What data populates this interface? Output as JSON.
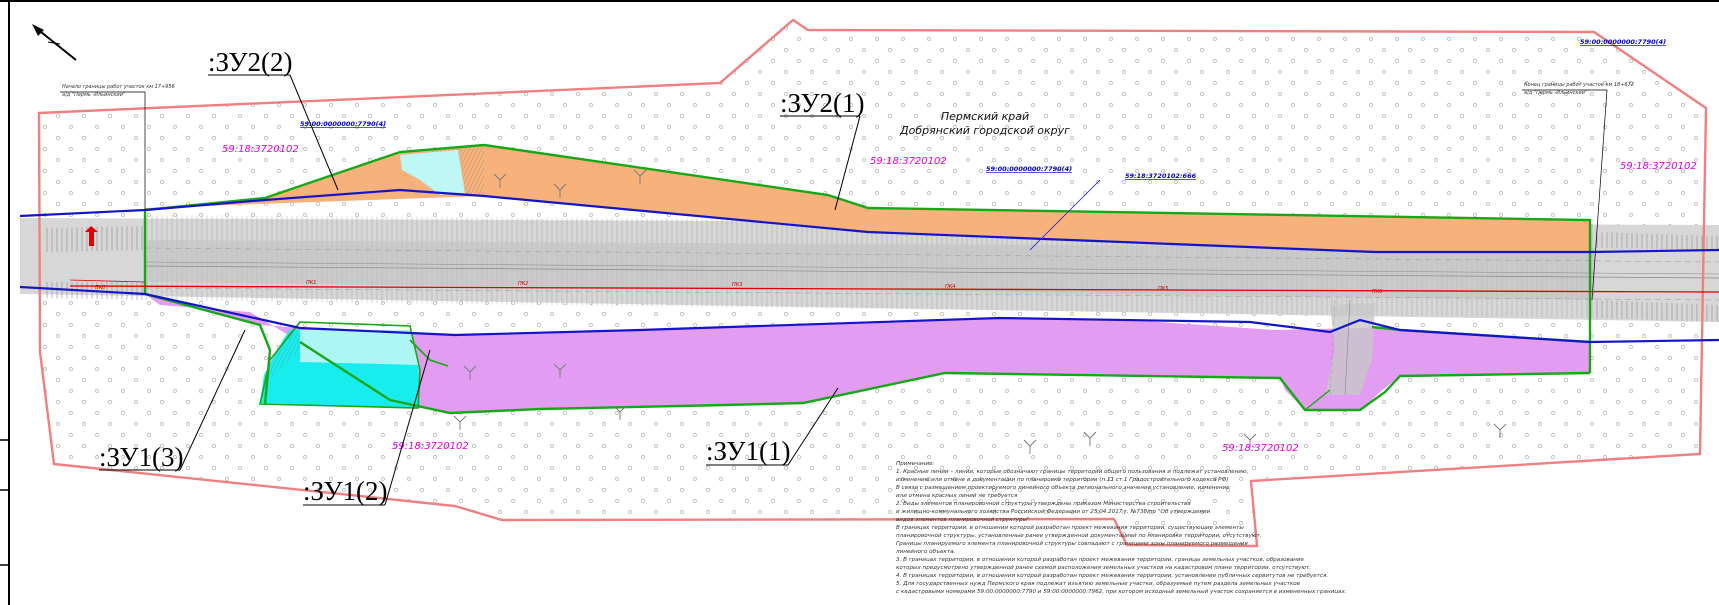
{
  "parcels": {
    "zu2_2": ":ЗУ2(2)",
    "zu2_1": ":ЗУ2(1)",
    "zu1_3": ":ЗУ1(3)",
    "zu1_2": ":ЗУ1(2)",
    "zu1_1": ":ЗУ1(1)"
  },
  "region": {
    "line1": "Пермский край",
    "line2": "Добрянский городской округ"
  },
  "cadastral": {
    "quarter_top_left": "59:18:3720102",
    "quarter_top_mid": "59:18:3720102",
    "quarter_top_right": "59:18:3720102",
    "quarter_bottom_mid": "59:18:3720102",
    "quarter_bottom_right": "59:18:3720102",
    "unit_left": "59:00:0000000:7790(4)",
    "unit_mid": "59:00:0000000:7790(4)",
    "unit_corner": "59:00:0000000:7790(4)",
    "parcel_666": "59:18:3720102:666"
  },
  "callouts": {
    "start_line1": "Начало границы работ участок км 17+956",
    "start_line2": "а/д \"Пермь -Ильинский\"",
    "end_line1": "Конец границы работ участок км 18+672",
    "end_line2": "а/д \"Пермь -Ильинский\""
  },
  "pickets": [
    "ПК0",
    "ПК1",
    "ПК2",
    "ПК3",
    "ПК4",
    "ПК5",
    "ПК6"
  ],
  "notes": [
    "Примечание:",
    "1. Красные линии – линии, которые обозначают границы территорий общего пользования и подлежат установлению,",
    "изменению или отмене в документации по планировке территории (п.11 ст.1 Градостроительного кодекса РФ)",
    "В связи с размещением проектируемого линейного объекта регионального значения установление, изменение",
    "или отмена красных линий не требуется",
    "2. Виды элементов планировочной структуры утверждены приказом Министерства строительства",
    "и жилищно-коммунального хозяйства Российской Федерации от 25.04.2017 г. №738/пр \"Об утверждении",
    "видов элементов планировочной структуры\"",
    "В границах территории, в отношении которой разработан проект межевания территории, существующие элементы",
    "планировочной структуры, установленные ранее утвержденной документацией по планировке территории, отсутствуют.",
    "Границы планируемого элемента планировочной структуры совпадают с границами зоны планируемого размещения",
    "линейного объекта.",
    "3. В границах территории, в отношении которой разработан проект межевания территории, границы земельных участков, образование",
    "которых предусмотрено утвержденной ранее схемой расположения земельных участков на кадастровом плане территории, отсутствуют.",
    "4. В границах территории, в отношении которой разработан проект межевания территории, установление публичных сервитутов не требуется.",
    "5. Для государственных нужд Пермского края подлежат изъятию земельные участки, образуемые путем раздела земельных участков",
    "с кадастровыми номерами 59:00:0000000:7790 и 59:00:0000000:7962, при котором исходный земельный участок сохраняется в измененных границах."
  ],
  "colors": {
    "red_boundary": "#f08080",
    "parcel_zu2": "#f6b27a",
    "parcel_zu1": "#e29cf2",
    "water": "#19ecec",
    "road_gray": "#c8c8c8",
    "green_outline": "#17a817",
    "blue_line": "#1414c8",
    "axis_red": "#e00000"
  },
  "icons": [
    "north-arrow-icon"
  ]
}
